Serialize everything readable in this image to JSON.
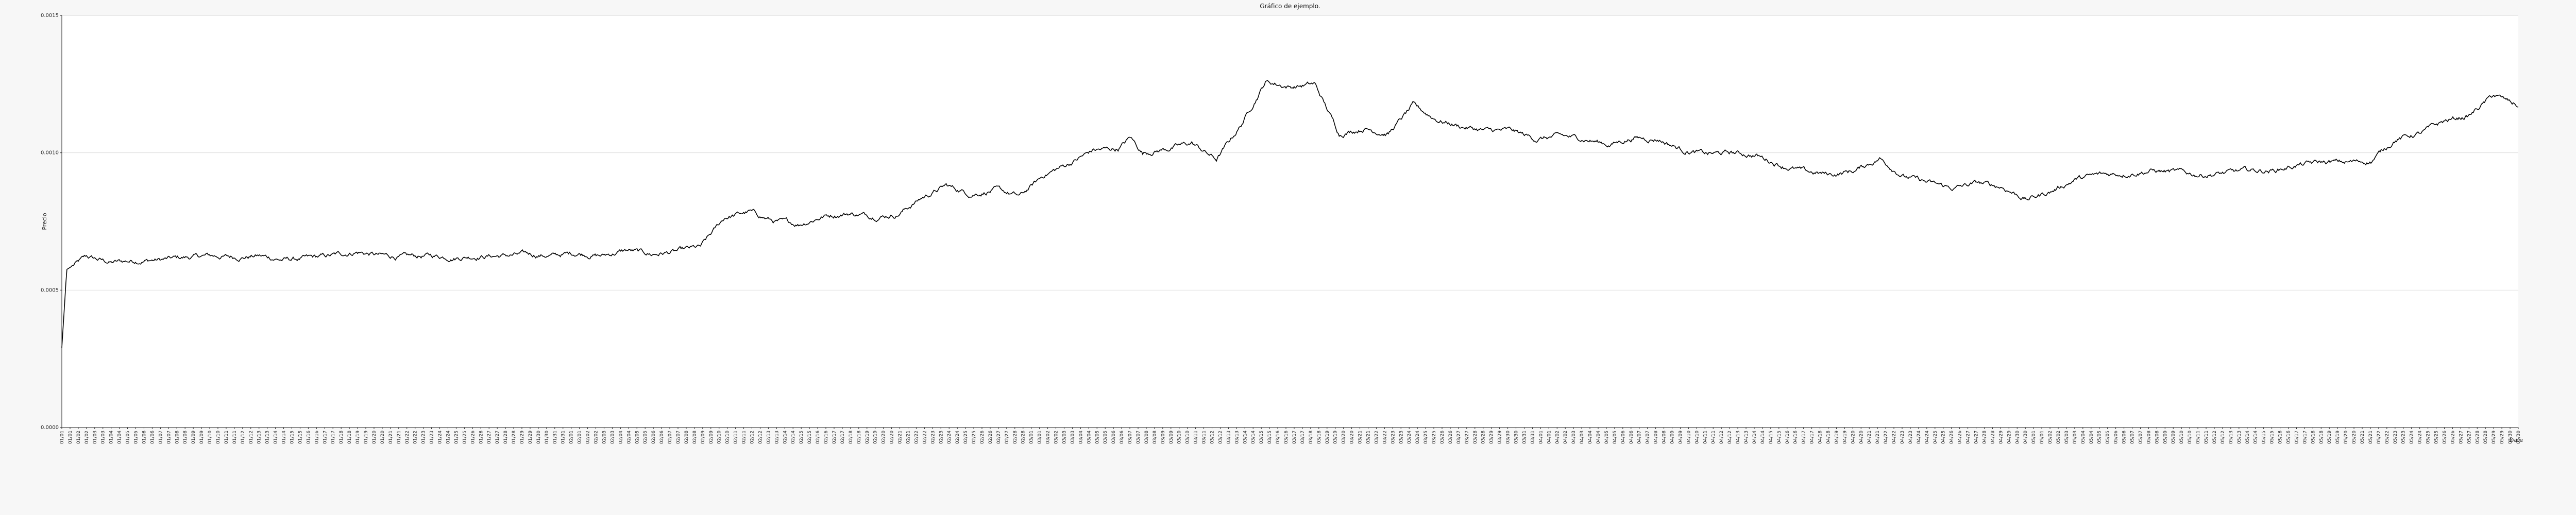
{
  "colors": {
    "background": "#f7f7f7",
    "plot_background": "#ffffff",
    "axis": "#222222",
    "grid": "#d9d9d9",
    "line": "#000000"
  },
  "chart_data": {
    "type": "line",
    "title": "Gráfico de ejemplo.",
    "xlabel": "Date",
    "ylabel": "Precio",
    "ylim": [
      0.0,
      0.0015
    ],
    "yticks": [
      0.0,
      0.0005,
      0.001,
      0.0015
    ],
    "ytick_labels": [
      "0.0000",
      "0.0005",
      "0.0010",
      "0.0015"
    ],
    "grid": true,
    "xtick_labels": [
      "01/01",
      "01/01",
      "01/02",
      "01/02",
      "01/03",
      "01/03",
      "01/04",
      "01/04",
      "01/05",
      "01/05",
      "01/06",
      "01/06",
      "01/07",
      "01/07",
      "01/08",
      "01/08",
      "01/09",
      "01/09",
      "01/10",
      "01/10",
      "01/11",
      "01/11",
      "01/12",
      "01/12",
      "01/13",
      "01/13",
      "01/14",
      "01/14",
      "01/15",
      "01/15",
      "01/16",
      "01/16",
      "01/17",
      "01/17",
      "01/18",
      "01/18",
      "01/19",
      "01/19",
      "01/20",
      "01/20",
      "01/21",
      "01/21",
      "01/22",
      "01/22",
      "01/23",
      "01/23",
      "01/24",
      "01/24",
      "01/25",
      "01/25",
      "01/26",
      "01/26",
      "01/27",
      "01/27",
      "01/28",
      "01/28",
      "01/29",
      "01/29",
      "01/30",
      "01/30",
      "01/31",
      "01/31",
      "02/01",
      "02/01",
      "02/02",
      "02/02",
      "02/03",
      "02/03",
      "02/04",
      "02/04",
      "02/05",
      "02/05",
      "02/06",
      "02/06",
      "02/07",
      "02/07",
      "02/08",
      "02/08",
      "02/09",
      "02/09",
      "02/10",
      "02/10",
      "02/11",
      "02/11",
      "02/12",
      "02/12",
      "02/13",
      "02/13",
      "02/14",
      "02/14",
      "02/15",
      "02/15",
      "02/16",
      "02/16",
      "02/17",
      "02/17",
      "02/18",
      "02/18",
      "02/19",
      "02/19",
      "02/20",
      "02/20",
      "02/21",
      "02/21",
      "02/22",
      "02/22",
      "02/23",
      "02/23",
      "02/24",
      "02/24",
      "02/25",
      "02/25",
      "02/26",
      "02/26",
      "02/27",
      "02/27",
      "02/28",
      "02/28",
      "03/01",
      "03/01",
      "03/02",
      "03/02",
      "03/03",
      "03/03",
      "03/04",
      "03/04",
      "03/05",
      "03/05",
      "03/06",
      "03/06",
      "03/07",
      "03/07",
      "03/08",
      "03/08",
      "03/09",
      "03/09",
      "03/10",
      "03/10",
      "03/11",
      "03/11",
      "03/12",
      "03/12",
      "03/13",
      "03/13",
      "03/14",
      "03/14",
      "03/15",
      "03/15",
      "03/16",
      "03/16",
      "03/17",
      "03/17",
      "03/18",
      "03/18",
      "03/19",
      "03/19",
      "03/20",
      "03/20",
      "03/21",
      "03/21",
      "03/22",
      "03/22",
      "03/23",
      "03/23",
      "03/24",
      "03/24",
      "03/25",
      "03/25",
      "03/26",
      "03/26",
      "03/27",
      "03/27",
      "03/28",
      "03/28",
      "03/29",
      "03/29",
      "03/30",
      "03/30",
      "03/31",
      "03/31",
      "04/01",
      "04/01",
      "04/02",
      "04/02",
      "04/03",
      "04/03",
      "04/04",
      "04/04",
      "04/05",
      "04/05",
      "04/06",
      "04/06",
      "04/07",
      "04/07",
      "04/08",
      "04/08",
      "04/09",
      "04/09",
      "04/10",
      "04/10",
      "04/11",
      "04/11",
      "04/12",
      "04/12",
      "04/13",
      "04/13",
      "04/14",
      "04/14",
      "04/15",
      "04/15",
      "04/16",
      "04/16",
      "04/17",
      "04/17",
      "04/18",
      "04/18",
      "04/19",
      "04/19",
      "04/20",
      "04/20",
      "04/21",
      "04/21",
      "04/22",
      "04/22",
      "04/23",
      "04/23",
      "04/24",
      "04/24",
      "04/25",
      "04/25",
      "04/26",
      "04/26",
      "04/27",
      "04/27",
      "04/28",
      "04/28",
      "04/29",
      "04/29",
      "04/30",
      "04/30",
      "05/01",
      "05/01",
      "05/02",
      "05/02",
      "05/03",
      "05/03",
      "05/04",
      "05/04",
      "05/05",
      "05/05",
      "05/06",
      "05/06",
      "05/07",
      "05/07",
      "05/08",
      "05/08",
      "05/09",
      "05/09",
      "05/10",
      "05/10",
      "05/11",
      "05/11",
      "05/12",
      "05/12",
      "05/13",
      "05/13",
      "05/14",
      "05/14",
      "05/15",
      "05/15",
      "05/16",
      "05/16",
      "05/17",
      "05/17",
      "05/18",
      "05/18",
      "05/19",
      "05/19",
      "05/20",
      "05/20",
      "05/21",
      "05/21",
      "05/22",
      "05/22",
      "05/23",
      "05/23",
      "05/24",
      "05/24",
      "05/25",
      "05/25",
      "05/26",
      "05/26",
      "05/27",
      "05/27",
      "05/28",
      "05/28",
      "05/29",
      "05/29",
      "05/30",
      "05/30"
    ],
    "series": [
      {
        "name": "",
        "x_index": [
          0,
          0.002,
          0.01,
          0.02,
          0.03,
          0.04,
          0.05,
          0.06,
          0.07,
          0.08,
          0.09,
          0.1,
          0.11,
          0.12,
          0.13,
          0.14,
          0.15,
          0.16,
          0.17,
          0.18,
          0.19,
          0.2,
          0.21,
          0.22,
          0.23,
          0.24,
          0.25,
          0.26,
          0.27,
          0.28,
          0.29,
          0.3,
          0.31,
          0.32,
          0.33,
          0.34,
          0.35,
          0.36,
          0.37,
          0.38,
          0.39,
          0.4,
          0.41,
          0.42,
          0.43,
          0.435,
          0.44,
          0.45,
          0.46,
          0.47,
          0.48,
          0.49,
          0.5,
          0.51,
          0.52,
          0.53,
          0.54,
          0.55,
          0.56,
          0.57,
          0.58,
          0.59,
          0.6,
          0.61,
          0.62,
          0.63,
          0.64,
          0.65,
          0.66,
          0.67,
          0.68,
          0.69,
          0.7,
          0.71,
          0.72,
          0.73,
          0.74,
          0.75,
          0.76,
          0.77,
          0.78,
          0.79,
          0.8,
          0.81,
          0.82,
          0.83,
          0.84,
          0.85,
          0.86,
          0.87,
          0.88,
          0.89,
          0.9,
          0.91,
          0.92,
          0.93,
          0.94,
          0.95,
          0.96,
          0.97,
          0.98,
          0.99,
          1.0
        ],
        "values": [
          0.00029,
          0.000575,
          0.00062,
          0.0006,
          0.000608,
          0.00061,
          0.000618,
          0.000625,
          0.00062,
          0.000625,
          0.00061,
          0.000615,
          0.000625,
          0.00064,
          0.000625,
          0.00062,
          0.000625,
          0.00062,
          0.000625,
          0.000625,
          0.00063,
          0.000625,
          0.000635,
          0.000625,
          0.000645,
          0.00063,
          0.00064,
          0.000655,
          0.000765,
          0.000785,
          0.00075,
          0.00074,
          0.00077,
          0.00078,
          0.00077,
          0.000775,
          0.000835,
          0.00088,
          0.00085,
          0.000865,
          0.00084,
          0.00092,
          0.00096,
          0.00101,
          0.001015,
          0.001055,
          0.001,
          0.001015,
          0.001035,
          0.000975,
          0.0011,
          0.00126,
          0.00124,
          0.00125,
          0.00107,
          0.00109,
          0.00107,
          0.00117,
          0.00112,
          0.001095,
          0.00108,
          0.00108,
          0.00105,
          0.00106,
          0.00105,
          0.00103,
          0.001055,
          0.00105,
          0.00101,
          0.000995,
          0.001,
          0.00099,
          0.000955,
          0.00093,
          0.00092,
          0.000935,
          0.00098,
          0.000915,
          0.00089,
          0.00087,
          0.00089,
          0.000875,
          0.00083,
          0.00086,
          0.000905,
          0.00092,
          0.000925,
          0.000935,
          0.00093,
          0.00092,
          0.000925,
          0.000935,
          0.000935,
          0.000955,
          0.000965,
          0.000965,
          0.00097,
          0.00105,
          0.00107,
          0.001115,
          0.001135,
          0.00121,
          0.00117
        ]
      }
    ]
  }
}
